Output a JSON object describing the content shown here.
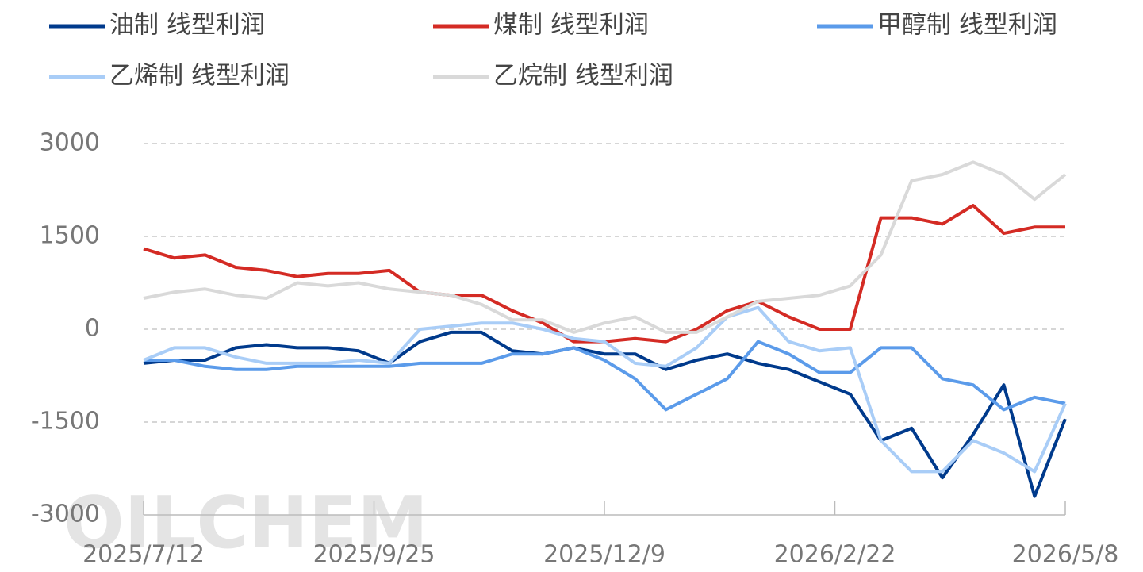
{
  "chart_data": {
    "type": "line",
    "watermark": "OILCHEM",
    "x": [
      "2025/7/12",
      "2025/7/22",
      "2025/8/1",
      "2025/8/11",
      "2025/8/21",
      "2025/8/31",
      "2025/9/10",
      "2025/9/20",
      "2025/9/30",
      "2025/10/10",
      "2025/10/20",
      "2025/10/30",
      "2025/11/9",
      "2025/11/19",
      "2025/11/29",
      "2025/12/9",
      "2025/12/19",
      "2025/12/29",
      "2026/1/8",
      "2026/1/18",
      "2026/1/28",
      "2026/2/7",
      "2026/2/17",
      "2026/2/27",
      "2026/3/9",
      "2026/3/19",
      "2026/3/29",
      "2026/4/8",
      "2026/4/18",
      "2026/4/28",
      "2026/5/8"
    ],
    "xticks": [
      "2025/7/12",
      "2025/9/25",
      "2025/12/9",
      "2026/2/22",
      "2026/5/8"
    ],
    "ylim": [
      -3000,
      3000
    ],
    "yticks": [
      -3000,
      -1500,
      0,
      1500,
      3000
    ],
    "grid": true,
    "series": [
      {
        "name": "油制 线型利润",
        "color": "#003a8c",
        "values": [
          -550,
          -500,
          -500,
          -300,
          -250,
          -300,
          -300,
          -350,
          -550,
          -200,
          -50,
          -50,
          -350,
          -400,
          -300,
          -400,
          -400,
          -650,
          -500,
          -400,
          -550,
          -650,
          -850,
          -1050,
          -1800,
          -1600,
          -2400,
          -1700,
          -900,
          -2700,
          -1450
        ]
      },
      {
        "name": "煤制 线型利润",
        "color": "#d42b24",
        "values": [
          1300,
          1150,
          1200,
          1000,
          950,
          850,
          900,
          900,
          950,
          600,
          550,
          550,
          300,
          100,
          -200,
          -200,
          -150,
          -200,
          0,
          300,
          450,
          200,
          0,
          0,
          1800,
          1800,
          1700,
          2000,
          1550,
          1650,
          1650
        ]
      },
      {
        "name": "甲醇制 线型利润",
        "color": "#5b9bea",
        "values": [
          -500,
          -500,
          -600,
          -650,
          -650,
          -600,
          -600,
          -600,
          -600,
          -550,
          -550,
          -550,
          -400,
          -400,
          -300,
          -500,
          -800,
          -1300,
          -1050,
          -800,
          -200,
          -400,
          -700,
          -700,
          -300,
          -300,
          -800,
          -900,
          -1300,
          -1100,
          -1200
        ]
      },
      {
        "name": "乙烯制 线型利润",
        "color": "#a9cdf7",
        "values": [
          -500,
          -300,
          -300,
          -450,
          -550,
          -550,
          -550,
          -500,
          -550,
          0,
          50,
          100,
          100,
          0,
          -150,
          -200,
          -550,
          -600,
          -300,
          200,
          350,
          -200,
          -350,
          -300,
          -1800,
          -2300,
          -2300,
          -1800,
          -2000,
          -2300,
          -1200
        ]
      },
      {
        "name": "乙烷制 线型利润",
        "color": "#d9d9d9",
        "values": [
          500,
          600,
          650,
          550,
          500,
          750,
          700,
          750,
          650,
          600,
          550,
          400,
          150,
          150,
          -50,
          100,
          200,
          -50,
          -50,
          200,
          450,
          500,
          550,
          700,
          1200,
          2400,
          2500,
          2700,
          2500,
          2100,
          2500
        ]
      }
    ]
  }
}
